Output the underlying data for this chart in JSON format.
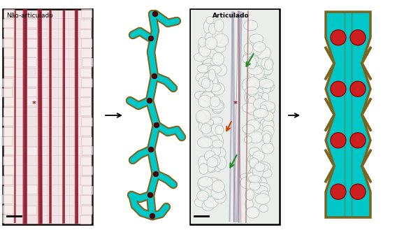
{
  "background_color": "#ffffff",
  "cyan_color": "#00C8C8",
  "outline_color": "#7A6520",
  "red_color": "#CC2020",
  "dark_red_color": "#6B0000",
  "label_fontsize": 6.5,
  "fig_width": 5.68,
  "fig_height": 3.29,
  "photo1_label": "Não-articulado",
  "photo2_label": "Articulado",
  "photo1_bg": "#f2e4e4",
  "photo2_bg": "#eaeeed",
  "cell_color1": "#f8f0f0",
  "cell_edge1": "#c09090",
  "laticifer_color1": "#9B1B30",
  "cell_color2": "#f4f4f2",
  "cell_edge2": "#b0c0b0"
}
